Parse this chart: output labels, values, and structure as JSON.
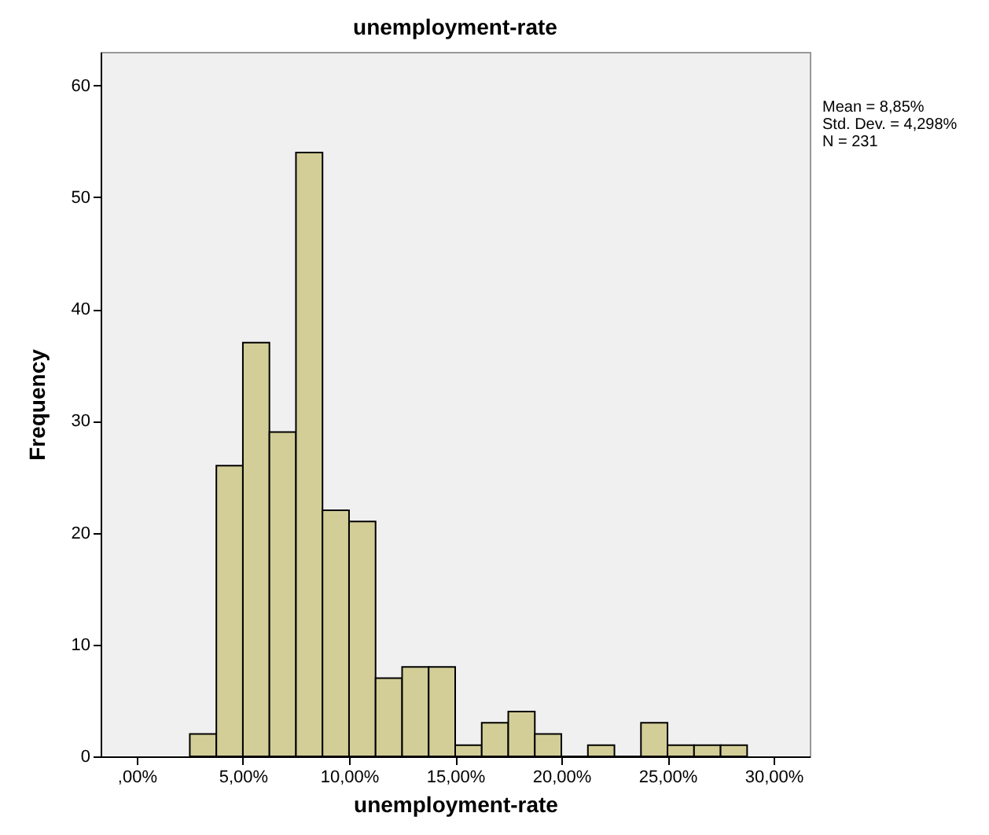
{
  "chart_data": {
    "type": "histogram",
    "title": "unemployment-rate",
    "xlabel": "unemployment-rate",
    "ylabel": "Frequency",
    "bins": [
      2.5,
      3.75,
      5,
      6.25,
      7.5,
      8.75,
      10,
      11.25,
      12.5,
      13.75,
      15,
      16.25,
      17.5,
      18.75,
      20,
      21.25,
      22.5,
      23.75,
      25,
      26.25,
      27.5,
      28.75
    ],
    "values": [
      2,
      26,
      37,
      29,
      54,
      22,
      21,
      7,
      8,
      8,
      1,
      3,
      4,
      2,
      0,
      1,
      0,
      3,
      1,
      1,
      1
    ],
    "color": "#d3ce97",
    "xlim": [
      -1.7,
      31.7
    ],
    "xticks": [
      {
        "value": 0,
        "label": ",00%"
      },
      {
        "value": 5,
        "label": "5,00%"
      },
      {
        "value": 10,
        "label": "10,00%"
      },
      {
        "value": 15,
        "label": "15,00%"
      },
      {
        "value": 20,
        "label": "20,00%"
      },
      {
        "value": 25,
        "label": "25,00%"
      },
      {
        "value": 30,
        "label": "30,00%"
      }
    ],
    "ylim": [
      0,
      63
    ],
    "yticks": [
      0,
      10,
      20,
      30,
      40,
      50,
      60
    ],
    "grid": false,
    "annotations": [
      "Mean = 8,85%",
      "Std. Dev. = 4,298%",
      "N = 231"
    ]
  }
}
